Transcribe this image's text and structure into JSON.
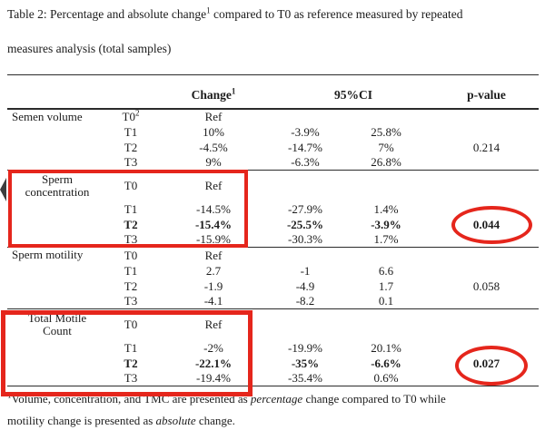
{
  "caption": {
    "line1_pre": "Table 2: Percentage and absolute change",
    "line1_sup": "1",
    "line1_post": " compared to T0 as reference measured by repeated",
    "line2": "measures analysis (total samples)"
  },
  "table": {
    "headers": {
      "change": "Change",
      "change_sup": "1",
      "ci": "95%CI",
      "pvalue": "p-value"
    },
    "sections": [
      {
        "id": "semen-volume",
        "label_lines": [
          "Semen volume"
        ],
        "rows": [
          {
            "time": "T0",
            "time_sup": "2",
            "change": "Ref",
            "ci_low": "",
            "ci_high": "",
            "p": "",
            "bold": false
          },
          {
            "time": "T1",
            "change": "10%",
            "ci_low": "-3.9%",
            "ci_high": "25.8%",
            "p": "",
            "bold": false
          },
          {
            "time": "T2",
            "change": "-4.5%",
            "ci_low": "-14.7%",
            "ci_high": "7%",
            "p": "0.214",
            "bold": false
          },
          {
            "time": "T3",
            "change": "9%",
            "ci_low": "-6.3%",
            "ci_high": "26.8%",
            "p": "",
            "bold": false
          }
        ]
      },
      {
        "id": "sperm-concentration",
        "label_lines": [
          "Sperm",
          "concentration"
        ],
        "rows": [
          {
            "time": "T0",
            "change": "Ref",
            "ci_low": "",
            "ci_high": "",
            "p": "",
            "bold": false
          },
          {
            "time": "T1",
            "change": "-14.5%",
            "ci_low": "-27.9%",
            "ci_high": "1.4%",
            "p": "",
            "bold": false
          },
          {
            "time": "T2",
            "change": "-15.4%",
            "ci_low": "-25.5%",
            "ci_high": "-3.9%",
            "p": "0.044",
            "bold": true
          },
          {
            "time": "T3",
            "change": "-15.9%",
            "ci_low": "-30.3%",
            "ci_high": "1.7%",
            "p": "",
            "bold": false
          }
        ]
      },
      {
        "id": "sperm-motility",
        "label_lines": [
          "Sperm motility"
        ],
        "rows": [
          {
            "time": "T0",
            "change": "Ref",
            "ci_low": "",
            "ci_high": "",
            "p": "",
            "bold": false
          },
          {
            "time": "T1",
            "change": "2.7",
            "ci_low": "-1",
            "ci_high": "6.6",
            "p": "",
            "bold": false
          },
          {
            "time": "T2",
            "change": "-1.9",
            "ci_low": "-4.9",
            "ci_high": "1.7",
            "p": "0.058",
            "bold": false
          },
          {
            "time": "T3",
            "change": "-4.1",
            "ci_low": "-8.2",
            "ci_high": "0.1",
            "p": "",
            "bold": false
          }
        ]
      },
      {
        "id": "total-motile-count",
        "label_lines": [
          "Total Motile",
          "Count"
        ],
        "rows": [
          {
            "time": "T0",
            "change": "Ref",
            "ci_low": "",
            "ci_high": "",
            "p": "",
            "bold": false
          },
          {
            "time": "T1",
            "change": "-2%",
            "ci_low": "-19.9%",
            "ci_high": "20.1%",
            "p": "",
            "bold": false
          },
          {
            "time": "T2",
            "change": "-22.1%",
            "ci_low": "-35%",
            "ci_high": "-6.6%",
            "p": "0.027",
            "bold": true
          },
          {
            "time": "T3",
            "change": "-19.4%",
            "ci_low": "-35.4%",
            "ci_high": "0.6%",
            "p": "",
            "bold": false
          }
        ]
      }
    ]
  },
  "footnote": {
    "sup": "1",
    "line1_parts": [
      {
        "text": "Volume, concentration, and TMC are presented as ",
        "italic": false
      },
      {
        "text": "percentage",
        "italic": true
      },
      {
        "text": " change compared to T0 while",
        "italic": false
      }
    ],
    "line2_parts": [
      {
        "text": "motility change is presented as ",
        "italic": false
      },
      {
        "text": "absolute",
        "italic": true
      },
      {
        "text": " change.",
        "italic": false
      }
    ]
  },
  "annotations": {
    "boxes": [
      {
        "highlights": "Sperm concentration change values"
      },
      {
        "highlights": "Total Motile Count change values"
      }
    ],
    "circles": [
      {
        "value": "0.044"
      },
      {
        "value": "0.027"
      }
    ],
    "arrow_marker": "left-margin-arrow"
  },
  "colors": {
    "annotation_red": "#e5261c",
    "text": "#1c1c1c",
    "rule": "#2b2b2b"
  }
}
